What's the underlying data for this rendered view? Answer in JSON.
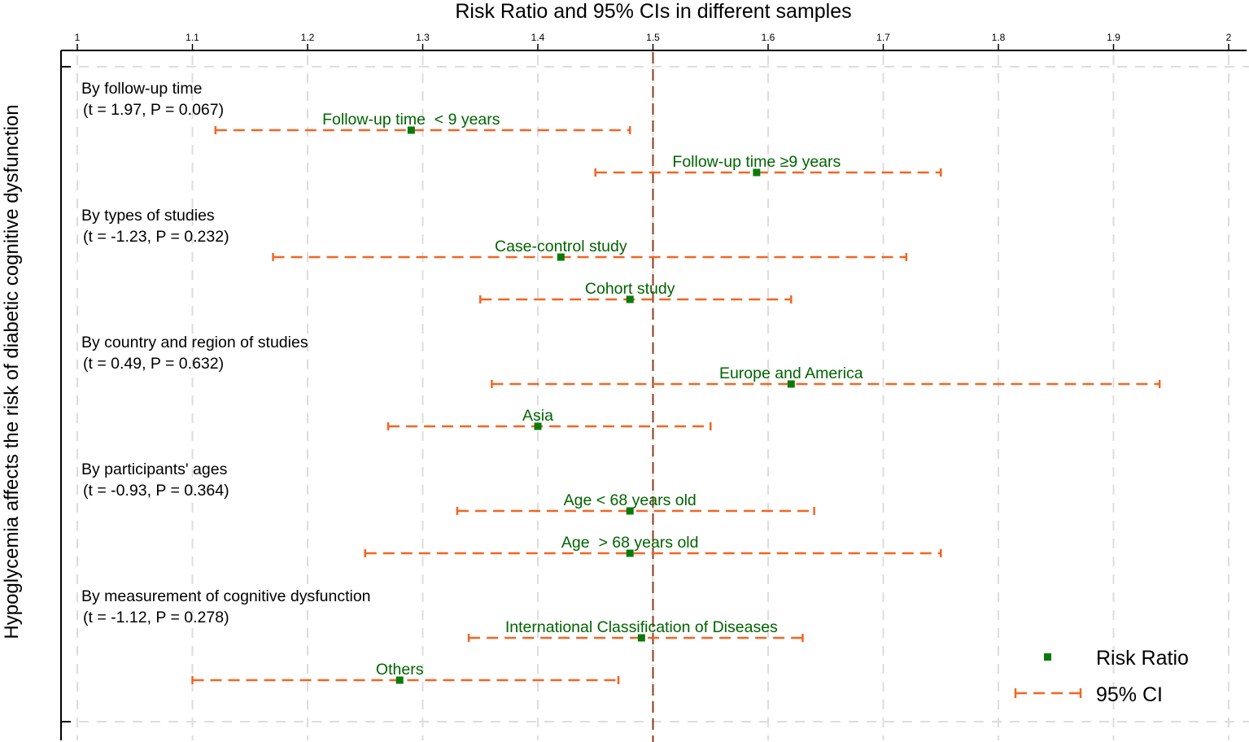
{
  "chart_data": {
    "type": "forest",
    "title": "Risk Ratio and 95% CIs in different samples",
    "ylabel": "Hypoglycemia affects the risk of diabetic cognitive dysfunction",
    "xlim": [
      1,
      2
    ],
    "xticks": [
      1,
      1.1,
      1.2,
      1.3,
      1.4,
      1.5,
      1.6,
      1.7,
      1.8,
      1.9,
      2
    ],
    "xtick_labels": [
      "1",
      "1.1",
      "1.2",
      "1.3",
      "1.4",
      "1.5",
      "1.6",
      "1.7",
      "1.8",
      "1.9",
      "2"
    ],
    "reference_line": 1.5,
    "groups": [
      {
        "title": "By follow-up time",
        "stat": "(t = 1.97, P = 0.067)",
        "rows": [
          {
            "label": "Follow-up time  < 9 years",
            "rr": 1.29,
            "lower": 1.12,
            "upper": 1.48
          },
          {
            "label": "Follow-up time ≥9 years",
            "rr": 1.59,
            "lower": 1.45,
            "upper": 1.75
          }
        ]
      },
      {
        "title": "By types of studies",
        "stat": "(t = -1.23, P = 0.232)",
        "rows": [
          {
            "label": "Case-control study",
            "rr": 1.42,
            "lower": 1.17,
            "upper": 1.72
          },
          {
            "label": "Cohort study",
            "rr": 1.48,
            "lower": 1.35,
            "upper": 1.62
          }
        ]
      },
      {
        "title": "By country and region of studies",
        "stat": "(t = 0.49, P = 0.632)",
        "rows": [
          {
            "label": "Europe and America",
            "rr": 1.62,
            "lower": 1.36,
            "upper": 1.94
          },
          {
            "label": "Asia",
            "rr": 1.4,
            "lower": 1.27,
            "upper": 1.55
          }
        ]
      },
      {
        "title": "By participants' ages",
        "stat": "(t = -0.93, P = 0.364)",
        "rows": [
          {
            "label": "Age < 68 years old",
            "rr": 1.48,
            "lower": 1.33,
            "upper": 1.64
          },
          {
            "label": "Age  > 68 years old",
            "rr": 1.48,
            "lower": 1.25,
            "upper": 1.75
          }
        ]
      },
      {
        "title": "By measurement of cognitive dysfunction",
        "stat": "(t = -1.12, P = 0.278)",
        "rows": [
          {
            "label": "International Classification of Diseases",
            "rr": 1.49,
            "lower": 1.34,
            "upper": 1.63
          },
          {
            "label": "Others",
            "rr": 1.28,
            "lower": 1.1,
            "upper": 1.47
          }
        ]
      }
    ],
    "legend": {
      "position": "bottom-right",
      "items": [
        {
          "label": "Risk Ratio",
          "marker": "square"
        },
        {
          "label": "95% CI",
          "marker": "dashed-line"
        }
      ]
    },
    "colors": {
      "point": "#0a7a0a",
      "ci": "#f26522",
      "reference": "#8b3a1a",
      "grid": "#dddddd",
      "point_label": "#006400"
    }
  }
}
